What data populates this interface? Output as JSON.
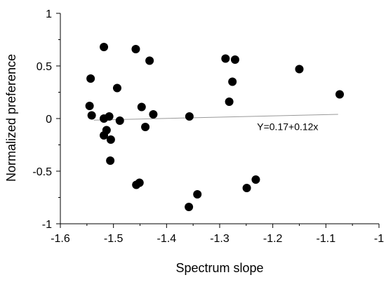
{
  "chart_data": {
    "type": "scatter",
    "xlabel": "Spectrum slope",
    "ylabel": "Normalized preference",
    "xlim": [
      -1.6,
      -1.0
    ],
    "ylim": [
      -1,
      1
    ],
    "x_ticks": [
      -1.6,
      -1.5,
      -1.4,
      -1.3,
      -1.2,
      -1.1,
      -1.0
    ],
    "x_tick_labels": [
      "-1.6",
      "-1.5",
      "-1.4",
      "-1.3",
      "-1.2",
      "-1.1",
      "-1"
    ],
    "y_ticks": [
      1,
      0.5,
      0,
      -0.5,
      -1
    ],
    "y_tick_labels": [
      "1",
      "0.5",
      "0",
      "-0.5",
      "-1"
    ],
    "grid": false,
    "marker_color": "#000000",
    "fit_line_color": "#999999",
    "points": [
      {
        "x": -1.543,
        "y": 0.38
      },
      {
        "x": -1.545,
        "y": 0.12
      },
      {
        "x": -1.541,
        "y": 0.03
      },
      {
        "x": -1.518,
        "y": 0.68
      },
      {
        "x": -1.518,
        "y": 0.0
      },
      {
        "x": -1.508,
        "y": 0.02
      },
      {
        "x": -1.518,
        "y": -0.16
      },
      {
        "x": -1.513,
        "y": -0.11
      },
      {
        "x": -1.505,
        "y": -0.2
      },
      {
        "x": -1.506,
        "y": -0.4
      },
      {
        "x": -1.493,
        "y": 0.29
      },
      {
        "x": -1.488,
        "y": -0.02
      },
      {
        "x": -1.458,
        "y": 0.66
      },
      {
        "x": -1.432,
        "y": 0.55
      },
      {
        "x": -1.447,
        "y": 0.11
      },
      {
        "x": -1.425,
        "y": 0.04
      },
      {
        "x": -1.44,
        "y": -0.08
      },
      {
        "x": -1.457,
        "y": -0.63
      },
      {
        "x": -1.451,
        "y": -0.61
      },
      {
        "x": -1.357,
        "y": 0.02
      },
      {
        "x": -1.342,
        "y": -0.72
      },
      {
        "x": -1.358,
        "y": -0.84
      },
      {
        "x": -1.289,
        "y": 0.57
      },
      {
        "x": -1.271,
        "y": 0.56
      },
      {
        "x": -1.276,
        "y": 0.35
      },
      {
        "x": -1.282,
        "y": 0.16
      },
      {
        "x": -1.249,
        "y": -0.66
      },
      {
        "x": -1.232,
        "y": -0.58
      },
      {
        "x": -1.15,
        "y": 0.47
      },
      {
        "x": -1.074,
        "y": 0.23
      }
    ],
    "fit_line": {
      "x": [
        -1.537,
        -1.077
      ],
      "y": [
        -0.015,
        0.04
      ]
    },
    "annotations": [
      {
        "text": "Y=0.17+0.12x",
        "x": -1.172,
        "y": -0.11
      }
    ]
  }
}
